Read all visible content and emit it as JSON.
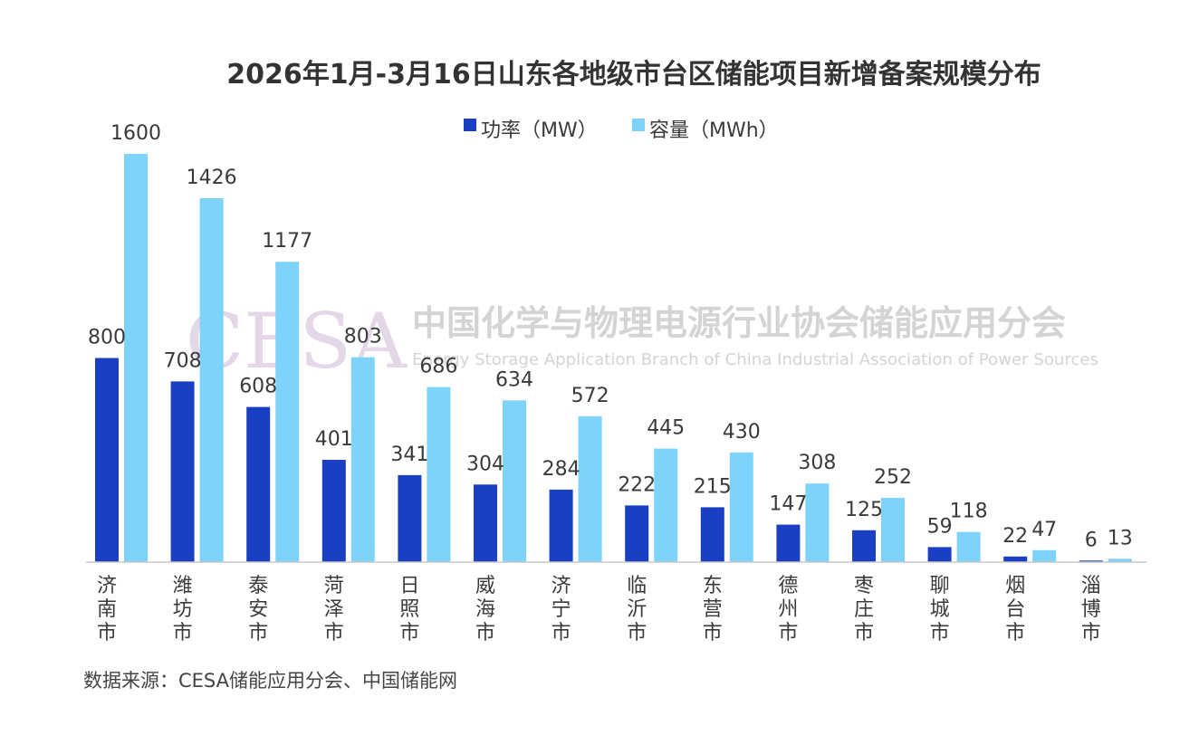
{
  "colors": {
    "power": "#1b3fc2",
    "capacity": "#7dd3fa",
    "text": "#3a3a3a",
    "axis": "#c8c8c8",
    "watermark_logo": "#cdb8d6",
    "watermark_text": "#d4d4d4"
  },
  "watermark": {
    "logo": "CESA",
    "name_cn": "中国化学与物理电源行业协会储能应用分会",
    "name_en": "Energy Storage Application Branch of China Industrial Association of Power Sources"
  },
  "source": "数据来源：CESA储能应用分会、中国储能网",
  "chart_data": {
    "type": "bar",
    "title": "2026年1月-3月16日山东各地级市台区储能项目新增备案规模分布",
    "legend_position": "top-center",
    "categories": [
      "济南市",
      "潍坊市",
      "泰安市",
      "菏泽市",
      "日照市",
      "威海市",
      "济宁市",
      "临沂市",
      "东营市",
      "德州市",
      "枣庄市",
      "聊城市",
      "烟台市",
      "淄博市"
    ],
    "series": [
      {
        "name": "功率（MW）",
        "color": "#1b3fc2",
        "values": [
          800,
          708,
          608,
          401,
          341,
          304,
          284,
          222,
          215,
          147,
          125,
          59,
          22,
          6
        ]
      },
      {
        "name": "容量（MWh）",
        "color": "#7dd3fa",
        "values": [
          1600,
          1426,
          1177,
          803,
          686,
          634,
          572,
          445,
          430,
          308,
          252,
          118,
          47,
          13
        ]
      }
    ],
    "ylim": [
      0,
      1600
    ],
    "grid": false,
    "xlabel": "",
    "ylabel": ""
  }
}
